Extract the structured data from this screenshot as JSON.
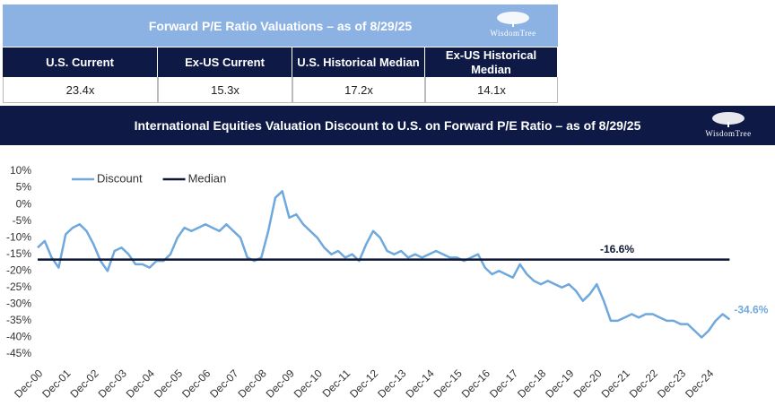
{
  "header": {
    "title": "Forward P/E Ratio Valuations – as of 8/29/25",
    "logo": "WisdomTree"
  },
  "table": {
    "columns": [
      "U.S. Current",
      "Ex-US Current",
      "U.S. Historical Median",
      "Ex-US Historical Median"
    ],
    "rows": [
      [
        "23.4x",
        "15.3x",
        "17.2x",
        "14.1x"
      ]
    ]
  },
  "chart_data": {
    "type": "line",
    "title": "International Equities Valuation Discount to U.S. on Forward P/E Ratio – as of 8/29/25",
    "logo": "WisdomTree",
    "categories": [
      "Dec-00",
      null,
      null,
      null,
      "Dec-01",
      null,
      null,
      null,
      "Dec-02",
      null,
      null,
      null,
      "Dec-03",
      null,
      null,
      null,
      "Dec-04",
      null,
      null,
      null,
      "Dec-05",
      null,
      null,
      null,
      "Dec-06",
      null,
      null,
      null,
      "Dec-07",
      null,
      null,
      null,
      "Dec-08",
      null,
      null,
      null,
      "Dec-09",
      null,
      null,
      null,
      "Dec-10",
      null,
      null,
      null,
      "Dec-11",
      null,
      null,
      null,
      "Dec-12",
      null,
      null,
      null,
      "Dec-13",
      null,
      null,
      null,
      "Dec-14",
      null,
      null,
      null,
      "Dec-15",
      null,
      null,
      null,
      "Dec-16",
      null,
      null,
      null,
      "Dec-17",
      null,
      null,
      null,
      "Dec-18",
      null,
      null,
      null,
      "Dec-19",
      null,
      null,
      null,
      "Dec-20",
      null,
      null,
      null,
      "Dec-21",
      null,
      null,
      null,
      "Dec-22",
      null,
      null,
      null,
      "Dec-23",
      null,
      null,
      null,
      "Dec-24",
      null,
      null,
      null
    ],
    "series": [
      {
        "name": "Discount",
        "color": "#6fa8dc",
        "values": [
          -13,
          -11,
          -16,
          -19,
          -9,
          -7,
          -6,
          -8,
          -12,
          -17,
          -20,
          -14,
          -13,
          -15,
          -18,
          -18,
          -19,
          -17,
          -17,
          -15,
          -10,
          -7,
          -8,
          -7,
          -6,
          -7,
          -8,
          -6,
          -8,
          -10,
          -16,
          -17,
          -16,
          -8,
          2,
          4,
          -4,
          -3,
          -6,
          -8,
          -10,
          -13,
          -15,
          -14,
          -16,
          -15,
          -17,
          -12,
          -8,
          -10,
          -14,
          -15,
          -14,
          -16,
          -15,
          -16,
          -15,
          -14,
          -15,
          -16,
          -16,
          -17,
          -16,
          -15,
          -19,
          -21,
          -20,
          -21,
          -22,
          -18,
          -21,
          -23,
          -24,
          -23,
          -24,
          -25,
          -24,
          -26,
          -29,
          -27,
          -24,
          -29,
          -35,
          -35,
          -34,
          -33,
          -34,
          -33,
          -33,
          -34,
          -35,
          -35,
          -36,
          -36,
          -38,
          -40,
          -38,
          -35,
          -33,
          -34.6
        ],
        "value_labels": [
          null,
          null,
          null,
          null,
          null,
          null,
          null,
          null,
          null,
          null,
          null,
          null,
          null,
          null,
          null,
          null,
          null,
          null,
          null,
          null,
          null,
          null,
          null,
          null,
          null,
          null,
          null,
          null,
          null,
          null,
          null,
          null,
          null,
          null,
          null,
          null,
          null,
          null,
          null,
          null,
          null,
          null,
          null,
          null,
          null,
          null,
          null,
          null,
          null,
          null,
          null,
          null,
          null,
          null,
          null,
          null,
          null,
          null,
          null,
          null,
          null,
          null,
          null,
          null,
          null,
          null,
          null,
          null,
          null,
          null,
          null,
          null,
          null,
          null,
          null,
          null,
          null,
          null,
          null,
          null,
          null,
          null,
          null,
          null,
          null,
          null,
          null,
          null,
          null,
          null,
          null,
          null,
          null,
          null,
          null,
          null,
          null,
          null,
          null,
          "-34.6%"
        ]
      },
      {
        "name": "Median",
        "color": "#0d1633",
        "value": -16.6,
        "value_label": "-16.6%"
      }
    ],
    "ylim": [
      -45,
      10
    ],
    "yticks": [
      {
        "value": 10,
        "label": "10%"
      },
      {
        "value": 5,
        "label": "5%"
      },
      {
        "value": 0,
        "label": "0%"
      },
      {
        "value": -5,
        "label": "-5%"
      },
      {
        "value": -10,
        "label": "-10%"
      },
      {
        "value": -15,
        "label": "-15%"
      },
      {
        "value": -20,
        "label": "-20%"
      },
      {
        "value": -25,
        "label": "-25%"
      },
      {
        "value": -30,
        "label": "-30%"
      },
      {
        "value": -35,
        "label": "-35%"
      },
      {
        "value": -40,
        "label": "-40%"
      },
      {
        "value": -45,
        "label": "-45%"
      }
    ],
    "grid": false,
    "legend": "top-left"
  }
}
